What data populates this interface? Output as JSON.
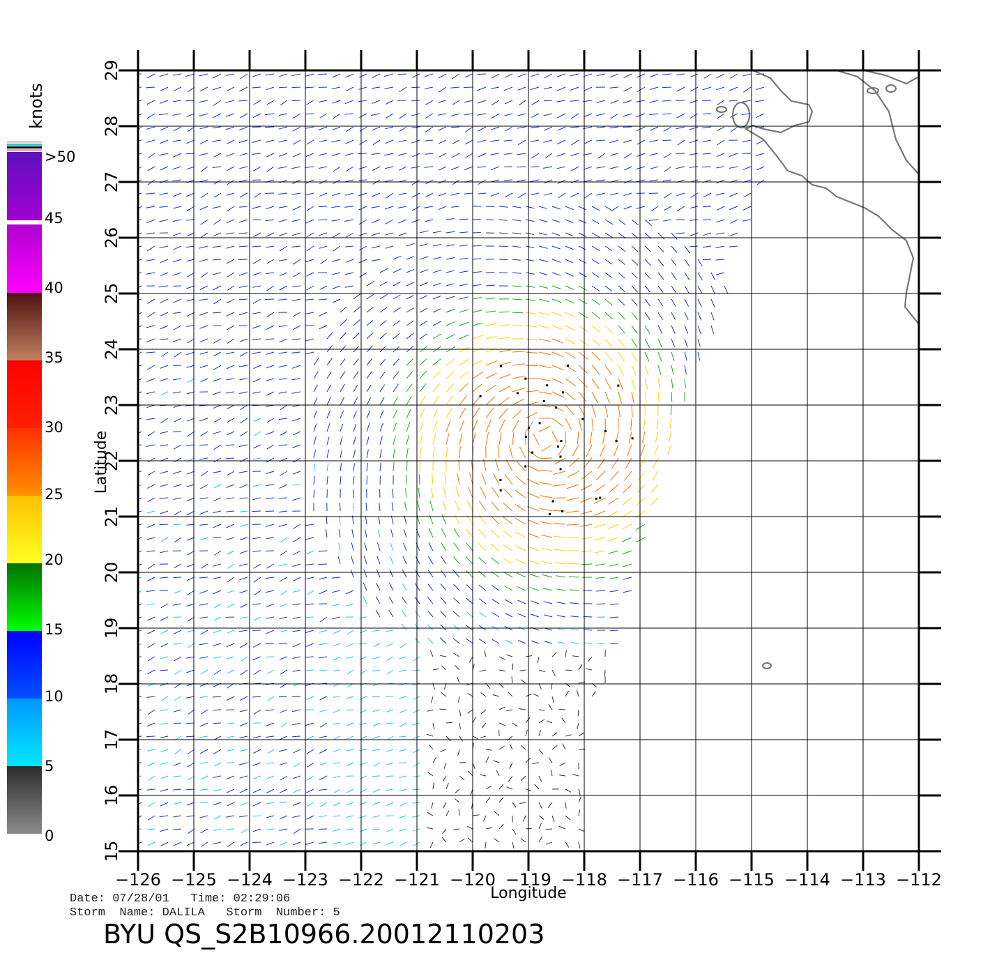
{
  "map": {
    "lon_label": "Longitude",
    "lat_label": "Latitude",
    "lon_ticks": [
      "−126",
      "−125",
      "−124",
      "−123",
      "−122",
      "−121",
      "−120",
      "−119",
      "−118",
      "−117",
      "−116",
      "−115",
      "−114",
      "−113",
      "−112"
    ],
    "lat_ticks": [
      "15",
      "16",
      "17",
      "18",
      "19",
      "20",
      "21",
      "22",
      "23",
      "24",
      "25",
      "26",
      "27",
      "28",
      "29"
    ],
    "lon_range": [
      -126,
      -112
    ],
    "lat_range": [
      15,
      29
    ],
    "grid": true,
    "storm_center": {
      "lon": -118.7,
      "lat": 22.4
    },
    "coastline_color": "#777777"
  },
  "colorbar": {
    "unit": "knots",
    "labels": [
      ">50",
      "45",
      "40",
      "35",
      "30",
      "25",
      "20",
      "15",
      "10",
      "5",
      "0"
    ],
    "bands": [
      {
        "range": "0-5",
        "top": "#2a2a2a",
        "bottom": "#8c8c8c"
      },
      {
        "range": "5-10",
        "top": "#0096ff",
        "bottom": "#00e8ff"
      },
      {
        "range": "10-15",
        "top": "#0000ff",
        "bottom": "#0050ff"
      },
      {
        "range": "15-20",
        "top": "#007000",
        "bottom": "#00ff00"
      },
      {
        "range": "20-25",
        "top": "#ffc000",
        "bottom": "#ffff20"
      },
      {
        "range": "25-30",
        "top": "#ff3000",
        "bottom": "#ff9000"
      },
      {
        "range": "30-35",
        "top": "#ff0000",
        "bottom": "#ff2000"
      },
      {
        "range": "35-40",
        "top": "#501010",
        "bottom": "#c08060"
      },
      {
        "range": "40-45",
        "top": "#b000d0",
        "bottom": "#ff00ff"
      },
      {
        "range": "45-50",
        "top": "#6010c0",
        "bottom": "#a000d0"
      }
    ]
  },
  "info": {
    "line1": "Date: 07/28/01   Time: 02:29:06",
    "line2": "Storm  Name: DALILA   Storm  Number: 5"
  },
  "title": "BYU  QS_S2B10966.20012110203"
}
